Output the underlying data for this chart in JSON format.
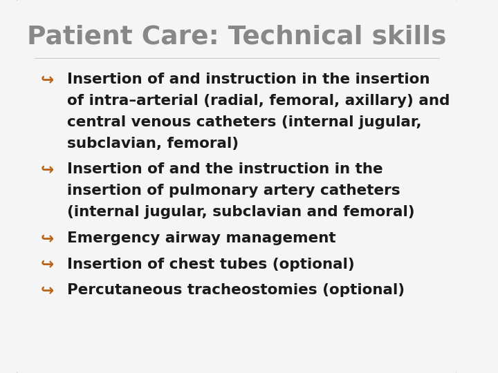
{
  "title": "Patient Care: Technical skills",
  "title_color": "#888888",
  "title_fontsize": 27,
  "background_color": "#f5f5f5",
  "border_color": "#cccccc",
  "bullet_color": "#b8651b",
  "text_color": "#1a1a1a",
  "bullets": [
    {
      "lines": [
        "Insertion of and instruction in the insertion",
        "of intra–arterial (radial, femoral, axillary) and",
        "central venous catheters (internal jugular,",
        "subclavian, femoral)"
      ]
    },
    {
      "lines": [
        "Insertion of and the instruction in the",
        "insertion of pulmonary artery catheters",
        "(internal jugular, subclavian and femoral)"
      ]
    },
    {
      "lines": [
        "Emergency airway management"
      ]
    },
    {
      "lines": [
        "Insertion of chest tubes (optional)"
      ]
    },
    {
      "lines": [
        "Percutaneous tracheostomies (optional)"
      ]
    }
  ],
  "body_fontsize": 15.5,
  "figsize": [
    7.2,
    5.4
  ],
  "dpi": 100
}
